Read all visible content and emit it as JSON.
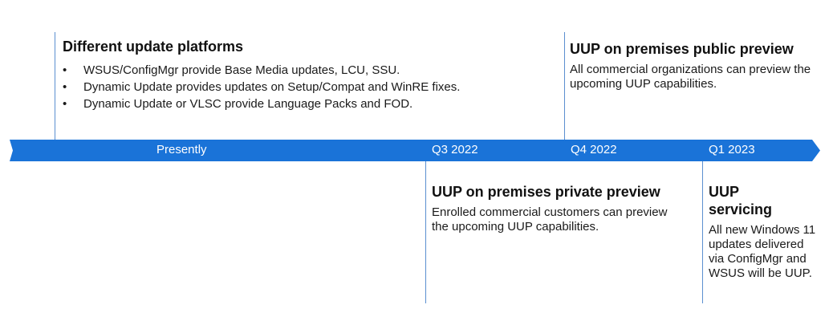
{
  "timeline": {
    "labels": [
      "Presently",
      "Q3 2022",
      "Q4 2022",
      "Q1 2023"
    ]
  },
  "events": {
    "platforms": {
      "title": "Different update platforms",
      "bullets": [
        "WSUS/ConfigMgr provide Base Media updates, LCU, SSU.",
        "Dynamic Update provides updates on Setup/Compat and WinRE fixes.",
        "Dynamic Update or VLSC provide Language Packs and FOD."
      ]
    },
    "public_preview": {
      "title": "UUP on premises public preview",
      "body": "All commercial organizations can preview the upcoming UUP capabilities."
    },
    "private_preview": {
      "title": "UUP on premises private preview",
      "body": "Enrolled commercial customers can preview the upcoming UUP capabilities."
    },
    "servicing": {
      "title": "UUP servicing",
      "body": "All new Windows 11 updates delivered via ConfigMgr and WSUS will be UUP."
    }
  },
  "colors": {
    "arrow": "#1a73d8",
    "connector": "#5b8fd0"
  }
}
